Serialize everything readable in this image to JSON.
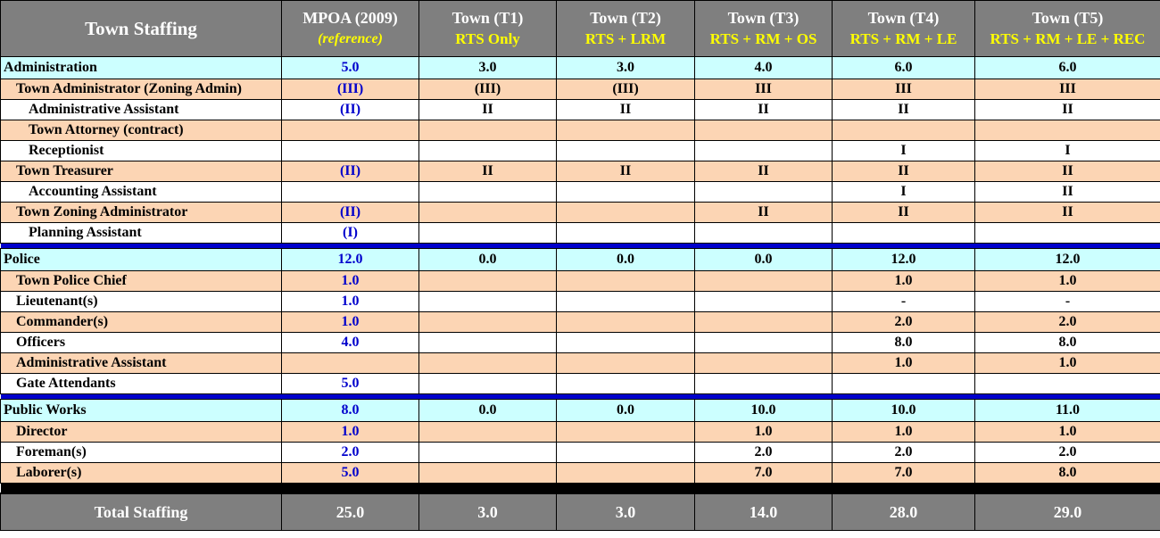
{
  "header": {
    "title": "Town Staffing",
    "columns": [
      {
        "name": "MPOA (2009)",
        "sub": "(reference)"
      },
      {
        "name": "Town (T1)",
        "sub": "RTS Only"
      },
      {
        "name": "Town (T2)",
        "sub": "RTS + LRM"
      },
      {
        "name": "Town (T3)",
        "sub": "RTS + RM + OS"
      },
      {
        "name": "Town (T4)",
        "sub": "RTS + RM + LE"
      },
      {
        "name": "Town (T5)",
        "sub": "RTS + RM + LE + REC"
      }
    ]
  },
  "sections": [
    {
      "name": "Administration",
      "values": [
        "5.0",
        "3.0",
        "3.0",
        "4.0",
        "6.0",
        "6.0"
      ],
      "rows": [
        {
          "label": "Town Administrator (Zoning Admin)",
          "indent": 1,
          "values": [
            "(III)",
            "(III)",
            "(III)",
            "III",
            "III",
            "III"
          ]
        },
        {
          "label": "Administrative Assistant",
          "indent": 2,
          "values": [
            "(II)",
            "II",
            "II",
            "II",
            "II",
            "II"
          ]
        },
        {
          "label": "Town Attorney (contract)",
          "indent": 2,
          "values": [
            "",
            "",
            "",
            "",
            "",
            ""
          ]
        },
        {
          "label": "Receptionist",
          "indent": 2,
          "values": [
            "",
            "",
            "",
            "",
            "I",
            "I"
          ]
        },
        {
          "label": "Town Treasurer",
          "indent": 1,
          "values": [
            "(II)",
            "II",
            "II",
            "II",
            "II",
            "II"
          ]
        },
        {
          "label": "Accounting Assistant",
          "indent": 2,
          "values": [
            "",
            "",
            "",
            "",
            "I",
            "II"
          ]
        },
        {
          "label": "Town Zoning Administrator",
          "indent": 1,
          "values": [
            "(II)",
            "",
            "",
            "II",
            "II",
            "II"
          ]
        },
        {
          "label": "Planning Assistant",
          "indent": 2,
          "values": [
            "(I)",
            "",
            "",
            "",
            "",
            ""
          ]
        }
      ]
    },
    {
      "name": "Police",
      "values": [
        "12.0",
        "0.0",
        "0.0",
        "0.0",
        "12.0",
        "12.0"
      ],
      "rows": [
        {
          "label": "Town Police Chief",
          "indent": 1,
          "values": [
            "1.0",
            "",
            "",
            "",
            "1.0",
            "1.0"
          ]
        },
        {
          "label": "Lieutenant(s)",
          "indent": 1,
          "values": [
            "1.0",
            "",
            "",
            "",
            "-",
            "-"
          ]
        },
        {
          "label": "Commander(s)",
          "indent": 1,
          "values": [
            "1.0",
            "",
            "",
            "",
            "2.0",
            "2.0"
          ]
        },
        {
          "label": "Officers",
          "indent": 1,
          "values": [
            "4.0",
            "",
            "",
            "",
            "8.0",
            "8.0"
          ]
        },
        {
          "label": "Administrative Assistant",
          "indent": 1,
          "values": [
            "",
            "",
            "",
            "",
            "1.0",
            "1.0"
          ]
        },
        {
          "label": "Gate Attendants",
          "indent": 1,
          "values": [
            "5.0",
            "",
            "",
            "",
            "",
            ""
          ]
        }
      ]
    },
    {
      "name": "Public Works",
      "values": [
        "8.0",
        "0.0",
        "0.0",
        "10.0",
        "10.0",
        "11.0"
      ],
      "rows": [
        {
          "label": "Director",
          "indent": 1,
          "values": [
            "1.0",
            "",
            "",
            "1.0",
            "1.0",
            "1.0"
          ]
        },
        {
          "label": "Foreman(s)",
          "indent": 1,
          "values": [
            "2.0",
            "",
            "",
            "2.0",
            "2.0",
            "2.0"
          ]
        },
        {
          "label": "Laborer(s)",
          "indent": 1,
          "values": [
            "5.0",
            "",
            "",
            "7.0",
            "7.0",
            "8.0"
          ]
        }
      ]
    }
  ],
  "total": {
    "label": "Total Staffing",
    "values": [
      "25.0",
      "3.0",
      "3.0",
      "14.0",
      "28.0",
      "29.0"
    ]
  },
  "colors": {
    "header_bg": "#7f7f7f",
    "header_sub": "#ffff00",
    "section_bg": "#ccffff",
    "peach_row": "#fcd5b4",
    "mpoa_value": "#0000cc",
    "divider": "#0000cc"
  }
}
